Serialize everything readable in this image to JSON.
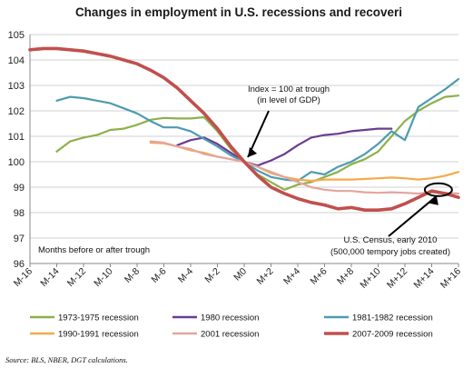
{
  "chart_data": {
    "type": "line",
    "title": "Changes in employment in U.S. recessions and recoveri",
    "xlabel": "",
    "ylabel": "",
    "ylim": [
      96,
      105
    ],
    "yticks": [
      96,
      97,
      98,
      99,
      100,
      101,
      102,
      103,
      104,
      105
    ],
    "x_range": [
      -16,
      16
    ],
    "xtick_labels": [
      "M-16",
      "M-14",
      "M-12",
      "M-10",
      "M-8",
      "M-6",
      "M-4",
      "M-2",
      "M0",
      "M+2",
      "M+4",
      "M+6",
      "M+8",
      "M+10",
      "M+12",
      "M+14",
      "M+16"
    ],
    "xtick_values": [
      -16,
      -14,
      -12,
      -10,
      -8,
      -6,
      -4,
      -2,
      0,
      2,
      4,
      6,
      8,
      10,
      12,
      14,
      16
    ],
    "grid": "horizontal",
    "legend_position": "bottom",
    "series": [
      {
        "name": "1973-1975 recession",
        "color": "#8db04a",
        "x": [
          -14,
          -13,
          -12,
          -11,
          -10,
          -9,
          -8,
          -7,
          -6,
          -5,
          -4,
          -3,
          -2,
          -1,
          0,
          1,
          2,
          3,
          4,
          5,
          6,
          7,
          8,
          9,
          10,
          11,
          12,
          13,
          14,
          15,
          16
        ],
        "values": [
          100.4,
          100.8,
          100.95,
          101.05,
          101.25,
          101.3,
          101.45,
          101.65,
          101.72,
          101.7,
          101.7,
          101.75,
          101.2,
          100.5,
          100.0,
          99.5,
          99.2,
          98.9,
          99.1,
          99.2,
          99.4,
          99.6,
          99.9,
          100.1,
          100.4,
          101.0,
          101.6,
          102.0,
          102.3,
          102.55,
          102.6
        ]
      },
      {
        "name": "1980 recession",
        "color": "#6a3d8f",
        "x": [
          -5,
          -4,
          -3,
          -2,
          -1,
          0,
          1,
          2,
          3,
          4,
          5,
          6,
          7,
          8,
          9,
          10,
          11
        ],
        "values": [
          100.65,
          100.85,
          100.95,
          100.7,
          100.35,
          100.0,
          99.85,
          100.05,
          100.3,
          100.65,
          100.95,
          101.05,
          101.1,
          101.2,
          101.25,
          101.3,
          101.3
        ]
      },
      {
        "name": "1981-1982 recession",
        "color": "#4e9bb0",
        "x": [
          -14,
          -13,
          -12,
          -11,
          -10,
          -9,
          -8,
          -7,
          -6,
          -5,
          -4,
          -3,
          -2,
          -1,
          0,
          1,
          2,
          3,
          4,
          5,
          6,
          7,
          8,
          9,
          10,
          11,
          12,
          13,
          14,
          15,
          16
        ],
        "values": [
          102.4,
          102.55,
          102.5,
          102.4,
          102.3,
          102.1,
          101.9,
          101.6,
          101.35,
          101.35,
          101.2,
          100.9,
          100.6,
          100.25,
          100.0,
          99.65,
          99.4,
          99.3,
          99.25,
          99.6,
          99.5,
          99.8,
          100.0,
          100.3,
          100.7,
          101.2,
          100.85,
          102.15,
          102.5,
          102.85,
          103.25
        ]
      },
      {
        "name": "1990-1991 recession",
        "color": "#f5a94a",
        "x": [
          -7,
          -6,
          -5,
          -4,
          -3,
          -2,
          -1,
          0,
          1,
          2,
          3,
          4,
          5,
          6,
          7,
          8,
          9,
          10,
          11,
          12,
          13,
          14,
          15,
          16
        ],
        "values": [
          100.75,
          100.72,
          100.6,
          100.45,
          100.35,
          100.2,
          100.1,
          100.0,
          99.8,
          99.55,
          99.4,
          99.3,
          99.25,
          99.3,
          99.3,
          99.3,
          99.32,
          99.35,
          99.38,
          99.35,
          99.3,
          99.35,
          99.45,
          99.6
        ]
      },
      {
        "name": "2001 recession",
        "color": "#e3a5a0",
        "x": [
          -7,
          -6,
          -5,
          -4,
          -3,
          -2,
          -1,
          0,
          1,
          2,
          3,
          4,
          5,
          6,
          7,
          8,
          9,
          10,
          11,
          12,
          13,
          14,
          15,
          16
        ],
        "values": [
          100.8,
          100.75,
          100.6,
          100.5,
          100.3,
          100.2,
          100.1,
          100.0,
          99.8,
          99.6,
          99.4,
          99.2,
          99.0,
          98.9,
          98.85,
          98.85,
          98.8,
          98.78,
          98.8,
          98.78,
          98.75,
          98.8,
          98.78,
          98.75
        ]
      },
      {
        "name": "2007-2009 recession",
        "color": "#c0504d",
        "x": [
          -16,
          -15,
          -14,
          -13,
          -12,
          -11,
          -10,
          -9,
          -8,
          -7,
          -6,
          -5,
          -4,
          -3,
          -2,
          -1,
          0,
          1,
          2,
          3,
          4,
          5,
          6,
          7,
          8,
          9,
          10,
          11,
          12,
          13,
          14,
          15,
          16
        ],
        "values": [
          104.4,
          104.45,
          104.45,
          104.4,
          104.35,
          104.25,
          104.15,
          104.0,
          103.85,
          103.6,
          103.3,
          102.9,
          102.4,
          101.9,
          101.3,
          100.6,
          100.0,
          99.45,
          99.0,
          98.75,
          98.55,
          98.4,
          98.3,
          98.15,
          98.2,
          98.1,
          98.1,
          98.15,
          98.35,
          98.6,
          98.85,
          98.75,
          98.6
        ]
      }
    ],
    "annotations": [
      {
        "lines": [
          "Index = 100 at trough",
          "(in level of GDP)"
        ],
        "arrow_to": [
          0,
          100
        ]
      },
      {
        "lines": [
          "U.S. Census, early 2010",
          "(500,000 tempory jobs created)"
        ],
        "circle_at": [
          14.5,
          98.9
        ]
      },
      {
        "lines": [
          "Months before or after trough"
        ]
      }
    ],
    "source": "Source: BLS, NBER, DGT calculations."
  }
}
